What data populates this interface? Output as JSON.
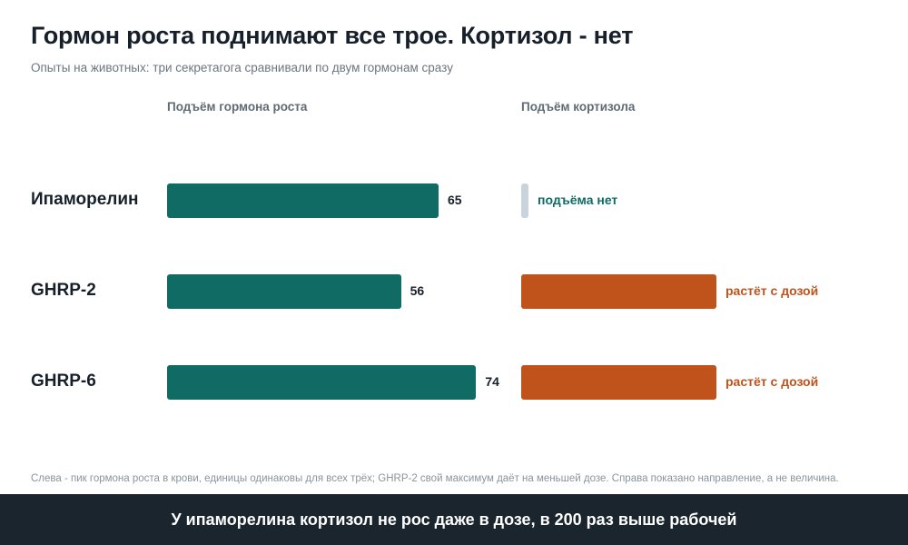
{
  "title": "Гормон роста поднимают все трое. Кортизол - нет",
  "subtitle": "Опыты на животных: три секретагога сравнивали по двум гормонам сразу",
  "footnote": "Слева - пик гормона роста в крови, единицы одинаковы для всех трёх; GHRP-2 свой максимум даёт на меньшей дозе. Справа показано направление, а не величина.",
  "banner": "У ипаморелина кортизол не рос даже в дозе, в 200 раз выше рабочей",
  "colors": {
    "gh_bar": "#0f6b64",
    "cortisol_rise": "#c0521b",
    "cortisol_none": "#c9d3dc",
    "cortisol_none_text": "#0f6b64"
  },
  "chart_data": [
    {
      "type": "bar",
      "orientation": "horizontal",
      "title": "Подъём гормона роста",
      "categories": [
        "Ипаморелин",
        "GHRP-2",
        "GHRP-6"
      ],
      "values": [
        65,
        56,
        74
      ],
      "xlim": [
        0,
        100
      ]
    },
    {
      "type": "bar",
      "orientation": "horizontal",
      "title": "Подъём кортизола",
      "categories": [
        "Ипаморелин",
        "GHRP-2",
        "GHRP-6"
      ],
      "values": [
        0,
        1,
        1
      ],
      "labels": [
        "подъёма нет",
        "растёт с дозой",
        "растёт с дозой"
      ]
    }
  ]
}
